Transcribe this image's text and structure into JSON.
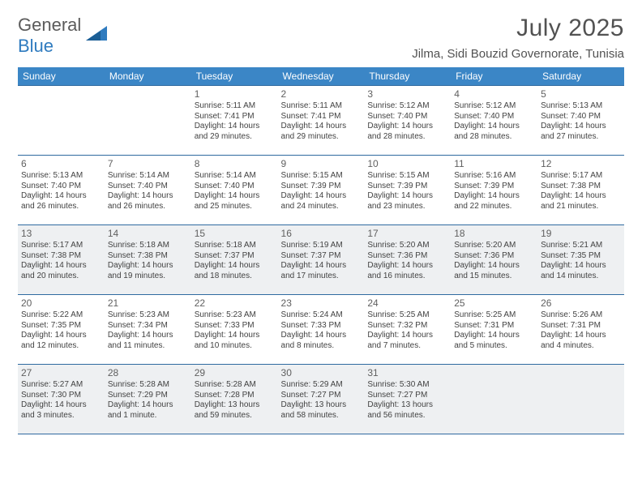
{
  "brand": {
    "line1": "General",
    "line2": "Blue"
  },
  "title": "July 2025",
  "location": "Jilma, Sidi Bouzid Governorate, Tunisia",
  "colors": {
    "header_bg": "#3b86c6",
    "header_text": "#ffffff",
    "rule": "#2f6aa0",
    "week_even_bg": "#eef0f2",
    "week_odd_bg": "#ffffff",
    "text": "#424242",
    "title_text": "#525252"
  },
  "day_headers": [
    "Sunday",
    "Monday",
    "Tuesday",
    "Wednesday",
    "Thursday",
    "Friday",
    "Saturday"
  ],
  "weeks": [
    [
      null,
      null,
      {
        "n": "1",
        "sunrise": "5:11 AM",
        "sunset": "7:41 PM",
        "daylight": "14 hours and 29 minutes."
      },
      {
        "n": "2",
        "sunrise": "5:11 AM",
        "sunset": "7:41 PM",
        "daylight": "14 hours and 29 minutes."
      },
      {
        "n": "3",
        "sunrise": "5:12 AM",
        "sunset": "7:40 PM",
        "daylight": "14 hours and 28 minutes."
      },
      {
        "n": "4",
        "sunrise": "5:12 AM",
        "sunset": "7:40 PM",
        "daylight": "14 hours and 28 minutes."
      },
      {
        "n": "5",
        "sunrise": "5:13 AM",
        "sunset": "7:40 PM",
        "daylight": "14 hours and 27 minutes."
      }
    ],
    [
      {
        "n": "6",
        "sunrise": "5:13 AM",
        "sunset": "7:40 PM",
        "daylight": "14 hours and 26 minutes."
      },
      {
        "n": "7",
        "sunrise": "5:14 AM",
        "sunset": "7:40 PM",
        "daylight": "14 hours and 26 minutes."
      },
      {
        "n": "8",
        "sunrise": "5:14 AM",
        "sunset": "7:40 PM",
        "daylight": "14 hours and 25 minutes."
      },
      {
        "n": "9",
        "sunrise": "5:15 AM",
        "sunset": "7:39 PM",
        "daylight": "14 hours and 24 minutes."
      },
      {
        "n": "10",
        "sunrise": "5:15 AM",
        "sunset": "7:39 PM",
        "daylight": "14 hours and 23 minutes."
      },
      {
        "n": "11",
        "sunrise": "5:16 AM",
        "sunset": "7:39 PM",
        "daylight": "14 hours and 22 minutes."
      },
      {
        "n": "12",
        "sunrise": "5:17 AM",
        "sunset": "7:38 PM",
        "daylight": "14 hours and 21 minutes."
      }
    ],
    [
      {
        "n": "13",
        "sunrise": "5:17 AM",
        "sunset": "7:38 PM",
        "daylight": "14 hours and 20 minutes."
      },
      {
        "n": "14",
        "sunrise": "5:18 AM",
        "sunset": "7:38 PM",
        "daylight": "14 hours and 19 minutes."
      },
      {
        "n": "15",
        "sunrise": "5:18 AM",
        "sunset": "7:37 PM",
        "daylight": "14 hours and 18 minutes."
      },
      {
        "n": "16",
        "sunrise": "5:19 AM",
        "sunset": "7:37 PM",
        "daylight": "14 hours and 17 minutes."
      },
      {
        "n": "17",
        "sunrise": "5:20 AM",
        "sunset": "7:36 PM",
        "daylight": "14 hours and 16 minutes."
      },
      {
        "n": "18",
        "sunrise": "5:20 AM",
        "sunset": "7:36 PM",
        "daylight": "14 hours and 15 minutes."
      },
      {
        "n": "19",
        "sunrise": "5:21 AM",
        "sunset": "7:35 PM",
        "daylight": "14 hours and 14 minutes."
      }
    ],
    [
      {
        "n": "20",
        "sunrise": "5:22 AM",
        "sunset": "7:35 PM",
        "daylight": "14 hours and 12 minutes."
      },
      {
        "n": "21",
        "sunrise": "5:23 AM",
        "sunset": "7:34 PM",
        "daylight": "14 hours and 11 minutes."
      },
      {
        "n": "22",
        "sunrise": "5:23 AM",
        "sunset": "7:33 PM",
        "daylight": "14 hours and 10 minutes."
      },
      {
        "n": "23",
        "sunrise": "5:24 AM",
        "sunset": "7:33 PM",
        "daylight": "14 hours and 8 minutes."
      },
      {
        "n": "24",
        "sunrise": "5:25 AM",
        "sunset": "7:32 PM",
        "daylight": "14 hours and 7 minutes."
      },
      {
        "n": "25",
        "sunrise": "5:25 AM",
        "sunset": "7:31 PM",
        "daylight": "14 hours and 5 minutes."
      },
      {
        "n": "26",
        "sunrise": "5:26 AM",
        "sunset": "7:31 PM",
        "daylight": "14 hours and 4 minutes."
      }
    ],
    [
      {
        "n": "27",
        "sunrise": "5:27 AM",
        "sunset": "7:30 PM",
        "daylight": "14 hours and 3 minutes."
      },
      {
        "n": "28",
        "sunrise": "5:28 AM",
        "sunset": "7:29 PM",
        "daylight": "14 hours and 1 minute."
      },
      {
        "n": "29",
        "sunrise": "5:28 AM",
        "sunset": "7:28 PM",
        "daylight": "13 hours and 59 minutes."
      },
      {
        "n": "30",
        "sunrise": "5:29 AM",
        "sunset": "7:27 PM",
        "daylight": "13 hours and 58 minutes."
      },
      {
        "n": "31",
        "sunrise": "5:30 AM",
        "sunset": "7:27 PM",
        "daylight": "13 hours and 56 minutes."
      },
      null,
      null
    ]
  ],
  "labels": {
    "sunrise": "Sunrise: ",
    "sunset": "Sunset: ",
    "daylight": "Daylight: "
  }
}
